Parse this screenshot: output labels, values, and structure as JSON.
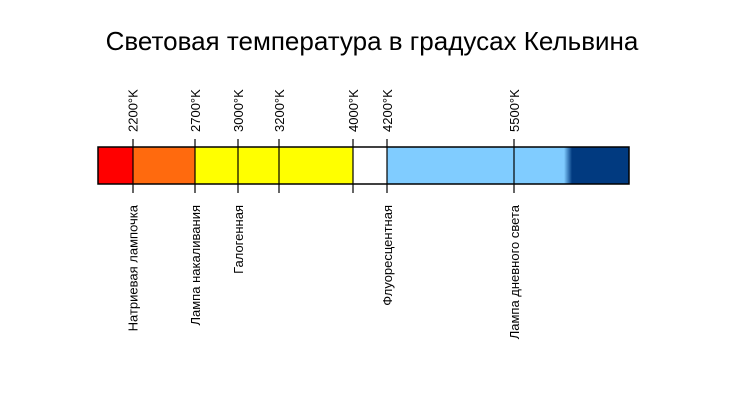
{
  "title": "Световая температура в градусах Кельвина",
  "temperature_marks": [
    {
      "label": "2200°K"
    },
    {
      "label": "2700°K"
    },
    {
      "label": "3000°K"
    },
    {
      "label": "3200°K"
    },
    {
      "label": "4000°K"
    },
    {
      "label": "4200°K"
    },
    {
      "label": "5500°K"
    }
  ],
  "light_sources": [
    {
      "label": "Натриевая лампочка"
    },
    {
      "label": "Лампа накаливания"
    },
    {
      "label": "Галогенная"
    },
    {
      "label": "Флуоресцентная"
    },
    {
      "label": "Лампа дневного света"
    }
  ],
  "colors": {
    "red": "#ff0000",
    "orange": "#ff6a0e",
    "yellow": "#ffff00",
    "white": "#ffffff",
    "light_blue": "#80ccff",
    "dark_blue": "#013a80",
    "outline": "#000000"
  }
}
